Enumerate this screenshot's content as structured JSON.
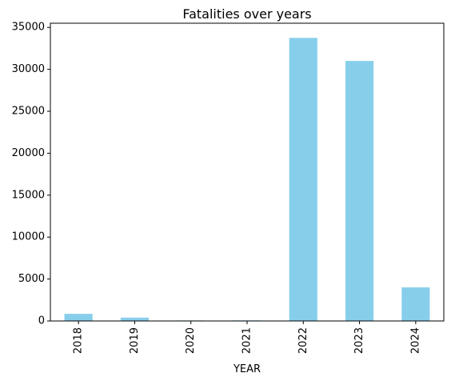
{
  "chart_data": {
    "type": "bar",
    "title": "Fatalities over years",
    "xlabel": "YEAR",
    "ylabel": "",
    "categories": [
      "2018",
      "2019",
      "2020",
      "2021",
      "2022",
      "2023",
      "2024"
    ],
    "values": [
      850,
      400,
      60,
      70,
      33750,
      31000,
      4000
    ],
    "ylim": [
      0,
      35500
    ],
    "yticks": [
      0,
      5000,
      10000,
      15000,
      20000,
      25000,
      30000,
      35000
    ],
    "bar_color": "#87CEEB",
    "grid": false,
    "legend": "none"
  }
}
